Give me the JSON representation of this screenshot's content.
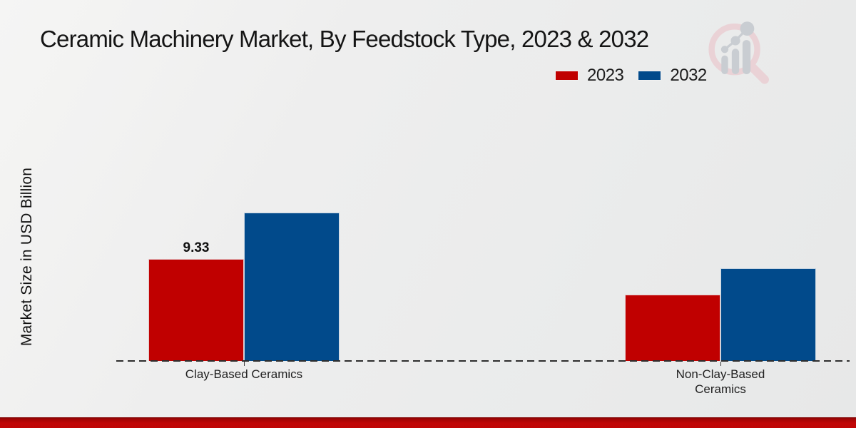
{
  "header": {
    "title": "Ceramic Machinery Market, By Feedstock Type, 2023 & 2032"
  },
  "legend": {
    "items": [
      {
        "label": "2023",
        "color": "#c00000"
      },
      {
        "label": "2032",
        "color": "#014a8b"
      }
    ]
  },
  "axes": {
    "y_label": "Market Size in USD Billion"
  },
  "branding": {
    "logo": "magnifier-bar-chart-logo",
    "bottom_bar_color": "#c00606"
  },
  "chart_data": {
    "type": "bar",
    "categories": [
      "Clay-Based Ceramics",
      "Non-Clay-Based Ceramics"
    ],
    "series": [
      {
        "name": "2023",
        "color": "#c00000",
        "values": [
          9.33,
          6.07
        ],
        "data_labels": [
          "9.33",
          null
        ]
      },
      {
        "name": "2032",
        "color": "#014a8b",
        "values": [
          13.57,
          8.48
        ],
        "data_labels": [
          null,
          null
        ]
      }
    ],
    "title": "Ceramic Machinery Market, By Feedstock Type, 2023 & 2032",
    "xlabel": "",
    "ylabel": "Market Size in USD Billion",
    "ylim": [
      0,
      15
    ],
    "grid": false,
    "legend_position": "top-right",
    "x_axis_style": "dashed-baseline",
    "note": "only 2023 Clay-Based bar shows a printed data label (9.33); other values estimated from bar heights"
  }
}
